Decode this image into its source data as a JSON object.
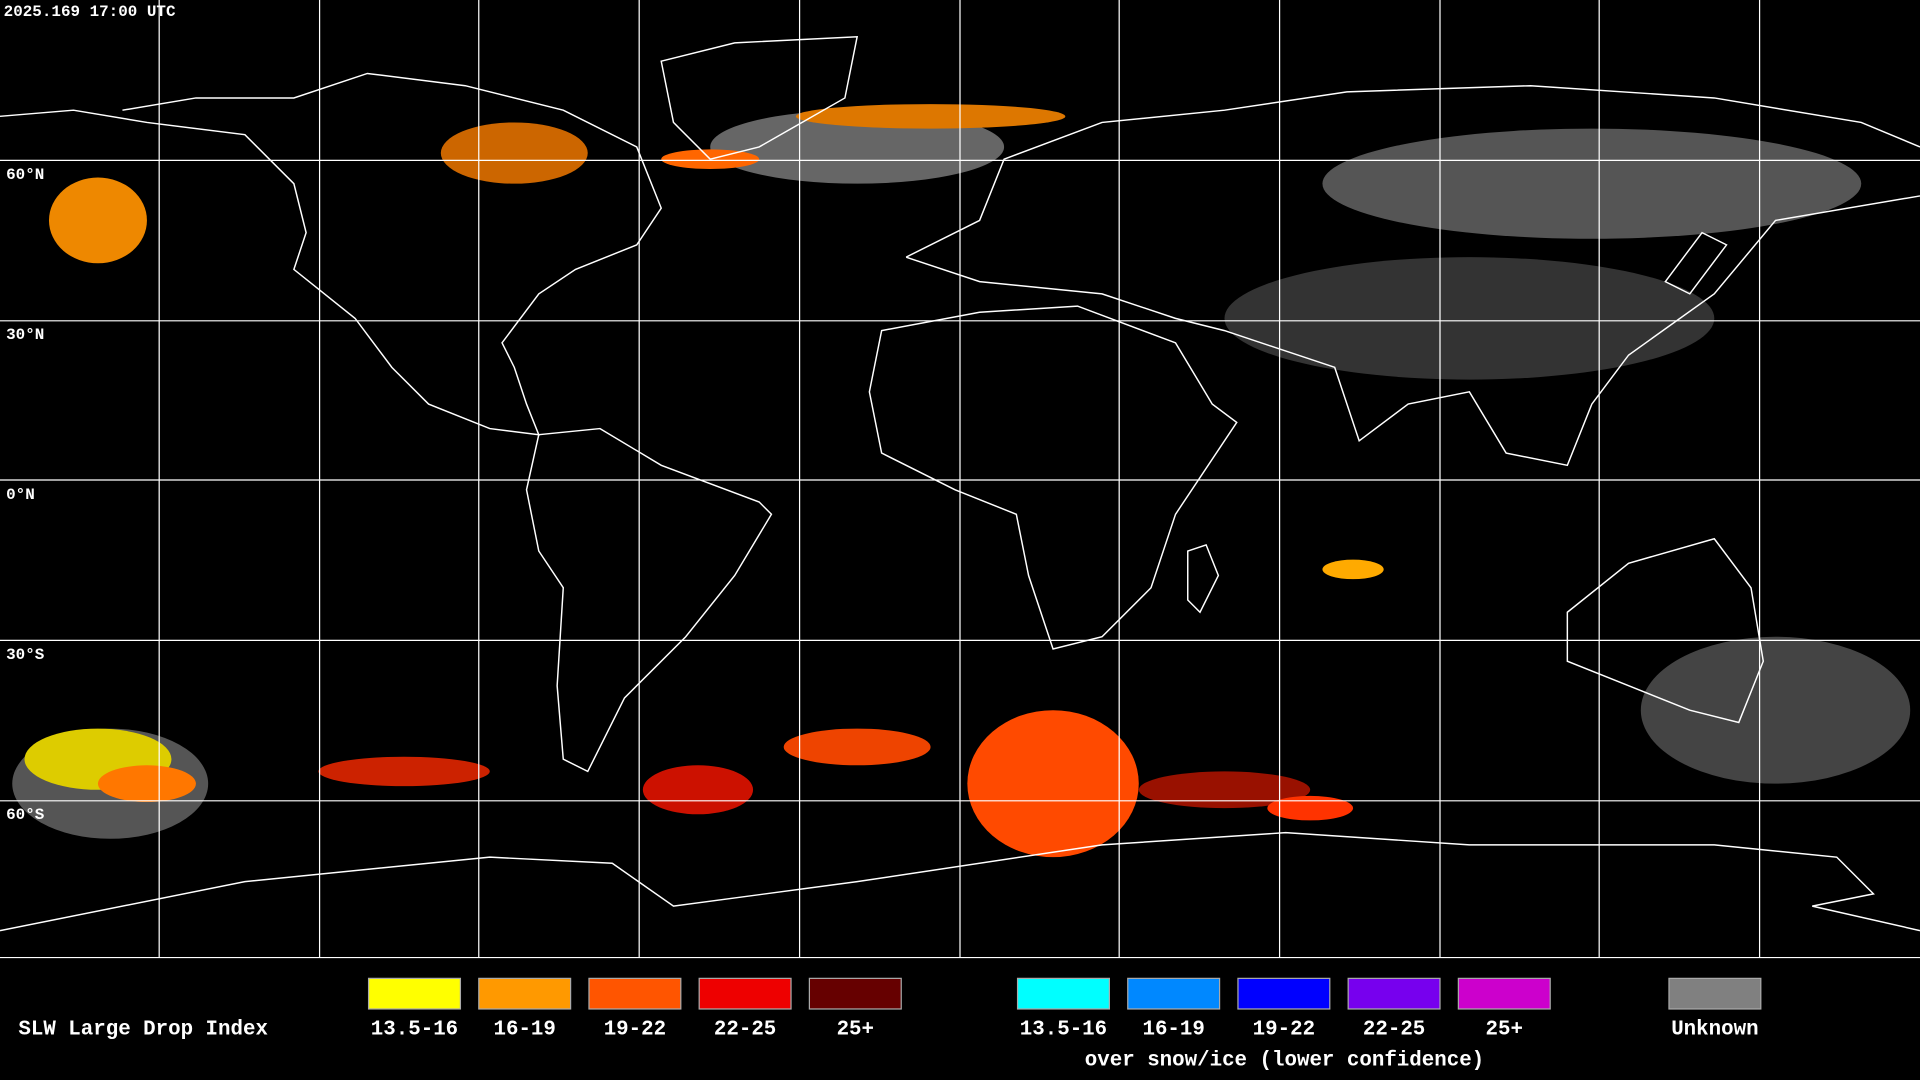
{
  "header": {
    "timestamp": "2025.169 17:00 UTC"
  },
  "map": {
    "lat_labels": [
      "60°N",
      "30°N",
      "0°N",
      "30°S",
      "60°S"
    ]
  },
  "legend": {
    "title": "SLW Large Drop Index",
    "groups": [
      {
        "entries": [
          {
            "label": "13.5-16",
            "color": "#ffff00"
          },
          {
            "label": "16-19",
            "color": "#ff9900"
          },
          {
            "label": "19-22",
            "color": "#ff5500"
          },
          {
            "label": "22-25",
            "color": "#ee0000"
          },
          {
            "label": "25+",
            "color": "#660000"
          }
        ]
      },
      {
        "entries": [
          {
            "label": "13.5-16",
            "color": "#00ffff"
          },
          {
            "label": "16-19",
            "color": "#0088ff"
          },
          {
            "label": "19-22",
            "color": "#0000ff"
          },
          {
            "label": "22-25",
            "color": "#7700ee"
          },
          {
            "label": "25+",
            "color": "#cc00cc"
          }
        ],
        "caption": "over snow/ice (lower confidence)"
      },
      {
        "entries": [
          {
            "label": "Unknown",
            "color": "#808080"
          }
        ]
      }
    ]
  }
}
